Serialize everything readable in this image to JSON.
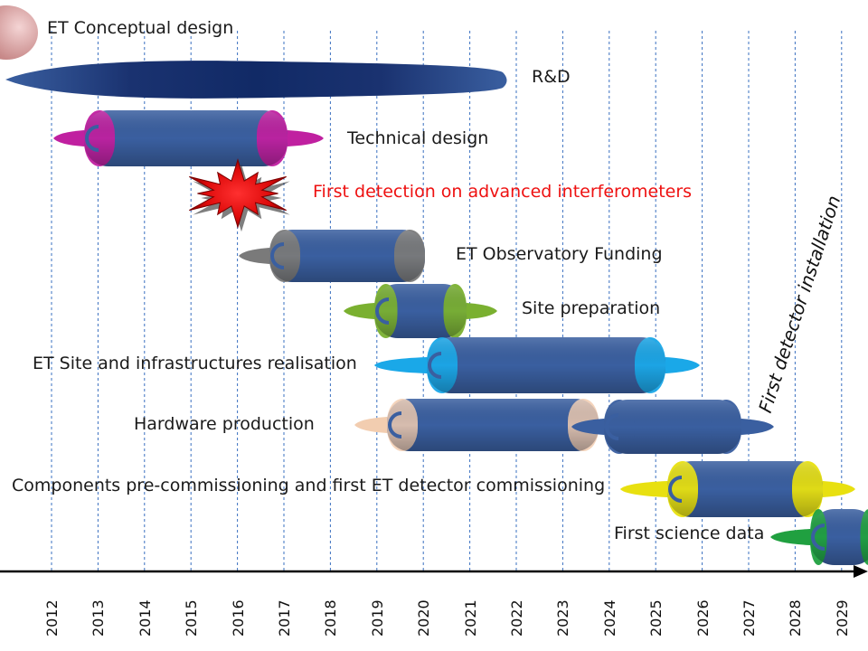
{
  "years": [
    "2012",
    "2013",
    "2014",
    "2015",
    "2016",
    "2017",
    "2018",
    "2019",
    "2020",
    "2021",
    "2022",
    "2023",
    "2024",
    "2025",
    "2026",
    "2027",
    "2028",
    "2029"
  ],
  "tasks": [
    {
      "label": "ET Conceptual design",
      "color": "#b06060"
    },
    {
      "label": "R&D",
      "color": "#1f3d7a"
    },
    {
      "label": "Technical design",
      "color": "#c020a0"
    },
    {
      "label": "First detection on advanced interferometers",
      "color": "#ee1111"
    },
    {
      "label": "ET Observatory Funding",
      "color": "#707070"
    },
    {
      "label": "Site preparation",
      "color": "#7ab030"
    },
    {
      "label": "ET Site  and infrastructures realisation",
      "color": "#1aa0e0"
    },
    {
      "label": "Hardware production",
      "color": "#f0c8a8"
    },
    {
      "label": "Components pre-commissioning and first ET detector commissioning",
      "color": "#e8e010"
    },
    {
      "label": "First science data",
      "color": "#20a040"
    }
  ],
  "milestone": {
    "label": "First detector installation"
  },
  "colors": {
    "body": "#3a5fa0",
    "axis": "#000000",
    "gridline": "#3a70c0"
  }
}
